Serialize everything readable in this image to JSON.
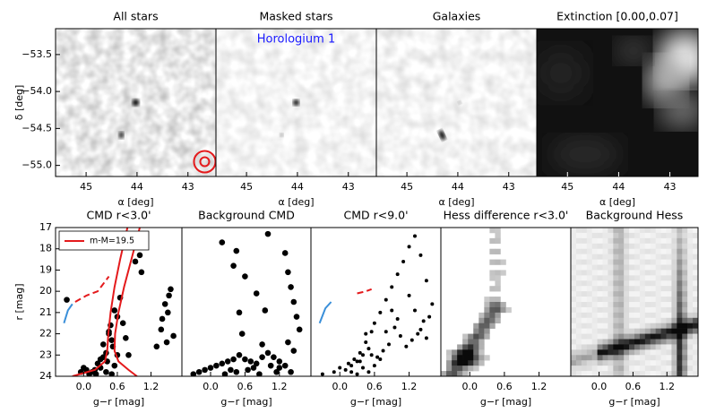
{
  "chart_data": [
    {
      "type": "image",
      "title": "All stars",
      "xlabel": "α [deg]",
      "ylabel": "δ [deg]",
      "xlim": [
        45.6,
        42.45
      ],
      "ylim": [
        -55.15,
        -53.15
      ],
      "xticks": [
        45,
        44,
        43
      ],
      "yticks": [
        {
          "value": -53.5,
          "label": "−53.5"
        },
        {
          "value": -54.0,
          "label": "−54.0"
        },
        {
          "value": -54.5,
          "label": "−54.5"
        },
        {
          "value": -55.0,
          "label": "−55.0"
        }
      ]
    },
    {
      "type": "image",
      "title": "Masked stars",
      "annotation": "Horologium 1",
      "xlabel": "α [deg]",
      "xlim": [
        45.6,
        42.45
      ],
      "ylim": [
        -55.15,
        -53.15
      ],
      "xticks": [
        45,
        44,
        43
      ]
    },
    {
      "type": "image",
      "title": "Galaxies",
      "xlabel": "α [deg]",
      "xlim": [
        45.6,
        42.45
      ],
      "ylim": [
        -55.15,
        -53.15
      ],
      "xticks": [
        45,
        44,
        43
      ]
    },
    {
      "type": "image",
      "title": "Extinction [0.00,0.07]",
      "xlabel": "α [deg]",
      "xlim": [
        45.6,
        42.45
      ],
      "ylim": [
        -55.15,
        -53.15
      ],
      "xticks": [
        45,
        44,
        43
      ]
    },
    {
      "type": "scatter",
      "title": "CMD r<3.0'",
      "xlabel": "g−r [mag]",
      "ylabel": "r [mag]",
      "xlim": [
        -0.5,
        1.75
      ],
      "ylim": [
        24,
        17
      ],
      "xticks": [
        {
          "value": 0,
          "label": "0.0"
        },
        0.6,
        1.2
      ],
      "yticks": [
        17,
        18,
        19,
        20,
        21,
        22,
        23,
        24
      ],
      "legend": "upper left",
      "series": [
        {
          "color": "#000000",
          "x": [
            0.98,
            1.0,
            1.03,
            0.92,
            0.65,
            0.55,
            0.6,
            0.48,
            0.45,
            0.5,
            0.52,
            0.4,
            0.35,
            0.42,
            0.55,
            0.3,
            0.2,
            0.15,
            0.25,
            0.1,
            0.05,
            0.35,
            0.45,
            0.6,
            0.4,
            0.3,
            0.5,
            0.22,
            0.0,
            -0.05,
            -0.3,
            1.45,
            1.5,
            1.4,
            1.55,
            1.38,
            1.48,
            1.52,
            1.6,
            1.3,
            0.7,
            0.75,
            0.8
          ],
          "y": [
            17.5,
            18.3,
            19.1,
            18.6,
            20.3,
            20.9,
            21.2,
            21.6,
            22.0,
            22.3,
            22.6,
            22.9,
            23.1,
            23.3,
            23.5,
            23.6,
            23.7,
            23.8,
            23.4,
            23.9,
            23.7,
            22.5,
            21.9,
            23.0,
            23.8,
            23.2,
            23.9,
            23.9,
            23.6,
            23.8,
            20.4,
            20.6,
            21.0,
            21.3,
            19.9,
            21.8,
            22.4,
            20.2,
            22.1,
            22.6,
            21.5,
            22.2,
            23.0
          ]
        },
        {
          "name": "m-M=19.5",
          "color": "#e41a1c",
          "line": "solid",
          "x": [
            0.78,
            0.65,
            0.55,
            0.48,
            0.44,
            0.42,
            0.38,
            0.2,
            -0.2
          ],
          "y": [
            17,
            18.5,
            19.8,
            21,
            22,
            22.8,
            23.3,
            23.7,
            24
          ]
        },
        {
          "color": "#e41a1c",
          "line": "solid",
          "x": [
            1.0,
            0.85,
            0.72,
            0.62,
            0.56,
            0.55,
            0.62,
            0.8,
            0.95
          ],
          "y": [
            17,
            18.5,
            19.8,
            21,
            22,
            22.8,
            23.3,
            23.7,
            24
          ]
        },
        {
          "color": "#e41a1c",
          "line": "dashed",
          "x": [
            -0.15,
            0.05,
            0.25,
            0.45
          ],
          "y": [
            20.5,
            20.2,
            20.0,
            19.3
          ]
        },
        {
          "color": "#3a8fd9",
          "line": "solid",
          "x": [
            -0.35,
            -0.28,
            -0.2
          ],
          "y": [
            21.5,
            20.9,
            20.6
          ]
        }
      ]
    },
    {
      "type": "scatter",
      "title": "Background CMD",
      "xlabel": "g−r [mag]",
      "xlim": [
        -0.5,
        1.75
      ],
      "ylim": [
        24,
        17
      ],
      "xticks": [
        {
          "value": 0,
          "label": "0.0"
        },
        0.6,
        1.2
      ],
      "series": [
        {
          "color": "#000000",
          "x": [
            0.2,
            0.45,
            0.4,
            0.6,
            1.0,
            0.8,
            0.95,
            1.3,
            1.35,
            1.4,
            1.45,
            1.5,
            1.55,
            1.35,
            1.45,
            0.5,
            0.55,
            0.9,
            1.0,
            1.1,
            1.2,
            -0.3,
            -0.2,
            -0.1,
            0.0,
            0.1,
            0.2,
            0.3,
            0.4,
            0.5,
            0.6,
            0.7,
            0.8,
            0.9,
            1.05,
            1.2,
            1.4,
            0.25,
            0.35,
            0.45,
            0.65,
            0.75,
            0.85,
            1.15,
            1.3
          ],
          "y": [
            17.7,
            18.1,
            18.8,
            19.3,
            17.3,
            20.1,
            20.9,
            18.2,
            19.1,
            19.8,
            20.5,
            21.2,
            21.8,
            22.4,
            22.8,
            21.0,
            22.0,
            22.5,
            22.9,
            23.1,
            23.3,
            23.9,
            23.8,
            23.7,
            23.6,
            23.5,
            23.4,
            23.3,
            23.2,
            23.0,
            23.2,
            23.3,
            23.4,
            23.1,
            23.5,
            23.6,
            23.8,
            23.9,
            23.7,
            23.8,
            23.7,
            23.6,
            23.9,
            23.8,
            23.5
          ]
        }
      ]
    },
    {
      "type": "scatter",
      "title": "CMD r<9.0'",
      "xlabel": "g−r [mag]",
      "xlim": [
        -0.5,
        1.75
      ],
      "ylim": [
        24,
        17
      ],
      "xticks": [
        {
          "value": 0,
          "label": "0.0"
        },
        0.6,
        1.2
      ],
      "series": [
        {
          "color": "#000000",
          "x": [
            -0.3,
            -0.1,
            0.0,
            0.1,
            0.15,
            0.2,
            0.25,
            0.3,
            0.35,
            0.4,
            0.45,
            0.5,
            0.55,
            0.6,
            0.7,
            0.8,
            0.9,
            1.0,
            1.1,
            1.2,
            1.3,
            1.4,
            1.5,
            1.6,
            1.45,
            1.35,
            1.25,
            1.15,
            1.05,
            0.95,
            0.85,
            0.75,
            0.65,
            0.5,
            0.4,
            0.3,
            0.2,
            0.6,
            0.7,
            1.3,
            1.4,
            1.5,
            1.55,
            1.2,
            0.9,
            0.45,
            0.35,
            1.0,
            0.8,
            0.55
          ],
          "y": [
            23.9,
            23.8,
            23.6,
            23.7,
            23.4,
            23.5,
            23.2,
            23.3,
            22.9,
            23.0,
            22.4,
            22.7,
            21.9,
            21.5,
            21.0,
            20.4,
            19.8,
            19.2,
            18.6,
            17.9,
            17.4,
            18.3,
            19.5,
            20.6,
            21.4,
            22.0,
            22.3,
            22.6,
            22.1,
            21.7,
            22.5,
            22.8,
            23.1,
            23.8,
            23.6,
            23.9,
            23.8,
            23.5,
            23.2,
            20.9,
            21.8,
            22.2,
            21.2,
            20.2,
            20.9,
            22.0,
            23.3,
            21.3,
            21.9,
            23.0
          ]
        },
        {
          "color": "#3a8fd9",
          "line": "solid",
          "x": [
            -0.35,
            -0.25,
            -0.15
          ],
          "y": [
            21.5,
            20.8,
            20.5
          ]
        },
        {
          "color": "#e41a1c",
          "line": "dashed",
          "x": [
            0.3,
            0.45,
            0.55
          ],
          "y": [
            20.1,
            20.0,
            19.9
          ]
        }
      ]
    },
    {
      "type": "image",
      "title": "Hess difference r<3.0'",
      "xlabel": "g−r [mag]",
      "xlim": [
        -0.5,
        1.75
      ],
      "ylim": [
        24,
        17
      ],
      "xticks": [
        {
          "value": 0,
          "label": "0.0"
        },
        0.6,
        1.2
      ]
    },
    {
      "type": "image",
      "title": "Background Hess",
      "xlabel": "g−r [mag]",
      "xlim": [
        -0.5,
        1.75
      ],
      "ylim": [
        24,
        17
      ],
      "xticks": [
        {
          "value": 0,
          "label": "0.0"
        },
        0.6,
        1.2
      ]
    }
  ]
}
